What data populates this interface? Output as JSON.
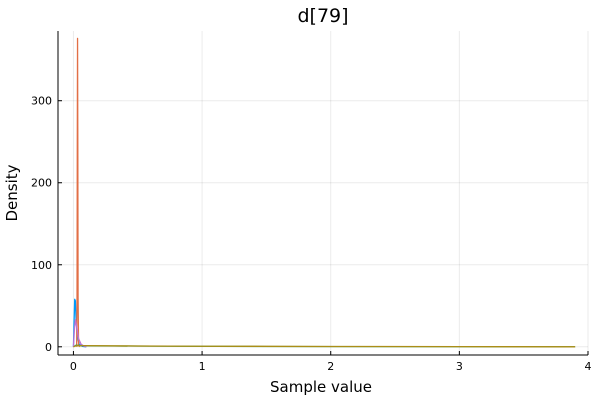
{
  "chart_data": {
    "type": "line",
    "title": "d[79]",
    "xlabel": "Sample value",
    "ylabel": "Density",
    "xlim": [
      -0.12,
      4.0
    ],
    "ylim": [
      -10,
      385
    ],
    "xticks": [
      0,
      1,
      2,
      3,
      4
    ],
    "yticks": [
      0,
      100,
      200,
      300
    ],
    "grid": true,
    "legend": "none",
    "series": [
      {
        "color": "#009af9",
        "points": [
          [
            0.0,
            0
          ],
          [
            0.005,
            30
          ],
          [
            0.01,
            58
          ],
          [
            0.015,
            56
          ],
          [
            0.02,
            35
          ],
          [
            0.03,
            12
          ],
          [
            0.045,
            3
          ],
          [
            0.07,
            0.5
          ],
          [
            0.1,
            0
          ]
        ]
      },
      {
        "color": "#e26f46",
        "points": [
          [
            0.025,
            0
          ],
          [
            0.028,
            60
          ],
          [
            0.03,
            250
          ],
          [
            0.032,
            376
          ],
          [
            0.034,
            250
          ],
          [
            0.036,
            60
          ],
          [
            0.04,
            2
          ],
          [
            0.05,
            0
          ]
        ]
      },
      {
        "color": "#3da44d",
        "points": [
          [
            0.0,
            0
          ],
          [
            0.02,
            2
          ],
          [
            0.05,
            1.5
          ],
          [
            0.1,
            1.2
          ],
          [
            0.3,
            1.0
          ],
          [
            0.8,
            0.7
          ],
          [
            1.5,
            0.4
          ],
          [
            2.5,
            0.2
          ],
          [
            3.5,
            0.1
          ],
          [
            3.9,
            0
          ]
        ]
      },
      {
        "color": "#c271d2",
        "points": [
          [
            0.0,
            0
          ],
          [
            0.008,
            22
          ],
          [
            0.015,
            33
          ],
          [
            0.025,
            25
          ],
          [
            0.04,
            10
          ],
          [
            0.06,
            3
          ],
          [
            0.08,
            1
          ],
          [
            0.1,
            0
          ]
        ]
      },
      {
        "color": "#ac8d18",
        "points": [
          [
            0.0,
            0
          ],
          [
            0.02,
            1.2
          ],
          [
            0.1,
            1.4
          ],
          [
            0.5,
            1.0
          ],
          [
            1.0,
            0.7
          ],
          [
            2.0,
            0.4
          ],
          [
            3.0,
            0.2
          ],
          [
            3.9,
            0
          ]
        ]
      }
    ]
  }
}
